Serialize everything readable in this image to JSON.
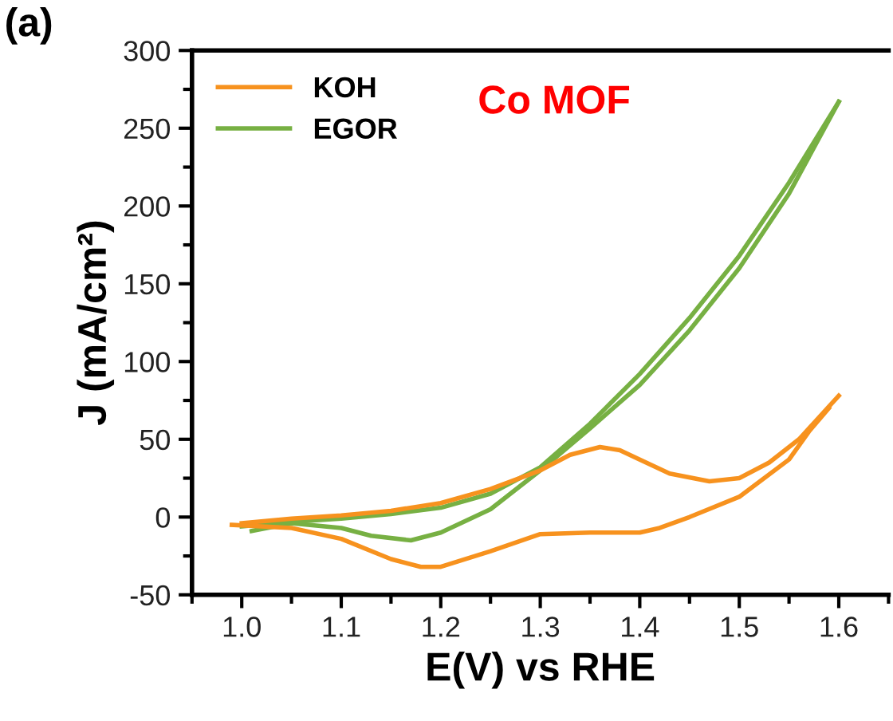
{
  "chart_data": {
    "type": "line",
    "title": "Co MOF",
    "xlabel": "E(V) vs RHE",
    "ylabel": "J (mA/cm²)",
    "annotations": [
      "(a)"
    ],
    "xlim": [
      0.95,
      1.65
    ],
    "xticks": [
      {
        "value": 1.0,
        "label": "1.0"
      },
      {
        "value": 1.1,
        "label": "1.1"
      },
      {
        "value": 1.2,
        "label": "1.2"
      },
      {
        "value": 1.3,
        "label": "1.3"
      },
      {
        "value": 1.4,
        "label": "1.4"
      },
      {
        "value": 1.5,
        "label": "1.5"
      },
      {
        "value": 1.6,
        "label": "1.6"
      }
    ],
    "ylim": [
      -50,
      300
    ],
    "yticks": [
      -50,
      0,
      50,
      100,
      150,
      200,
      250,
      300
    ],
    "grid": false,
    "legend": "top left",
    "marker": "none",
    "line_style": "solid",
    "series": [
      {
        "name": "KOH",
        "color": "#f7921e",
        "x": [
          1.0,
          1.05,
          1.1,
          1.15,
          1.2,
          1.25,
          1.3,
          1.33,
          1.36,
          1.38,
          1.4,
          1.43,
          1.47,
          1.5,
          1.53,
          1.56,
          1.6
        ],
        "values": [
          -4,
          -1,
          1,
          4,
          9,
          18,
          30,
          40,
          45,
          43,
          37,
          28,
          23,
          25,
          35,
          50,
          78
        ]
      },
      {
        "color": "#f7921e",
        "x": [
          0.99,
          1.05,
          1.1,
          1.15,
          1.18,
          1.2,
          1.25,
          1.3,
          1.35,
          1.4,
          1.42,
          1.45,
          1.5,
          1.55,
          1.57,
          1.59
        ],
        "values": [
          -5,
          -7,
          -14,
          -27,
          -32,
          -32,
          -22,
          -11,
          -10,
          -10,
          -7,
          0,
          13,
          37,
          55,
          70
        ]
      },
      {
        "name": "EGOR",
        "color": "#77b043",
        "x": [
          1.0,
          1.05,
          1.1,
          1.15,
          1.2,
          1.25,
          1.3,
          1.35,
          1.4,
          1.45,
          1.5,
          1.55,
          1.6
        ],
        "values": [
          -6,
          -3,
          -1,
          2,
          6,
          15,
          32,
          60,
          92,
          128,
          168,
          215,
          267
        ]
      },
      {
        "color": "#77b043",
        "x": [
          1.01,
          1.05,
          1.1,
          1.13,
          1.17,
          1.2,
          1.25,
          1.3,
          1.35,
          1.4,
          1.45,
          1.5,
          1.55,
          1.6
        ],
        "values": [
          -9,
          -4,
          -7,
          -12,
          -15,
          -10,
          5,
          30,
          57,
          85,
          120,
          160,
          208,
          267
        ]
      }
    ]
  }
}
